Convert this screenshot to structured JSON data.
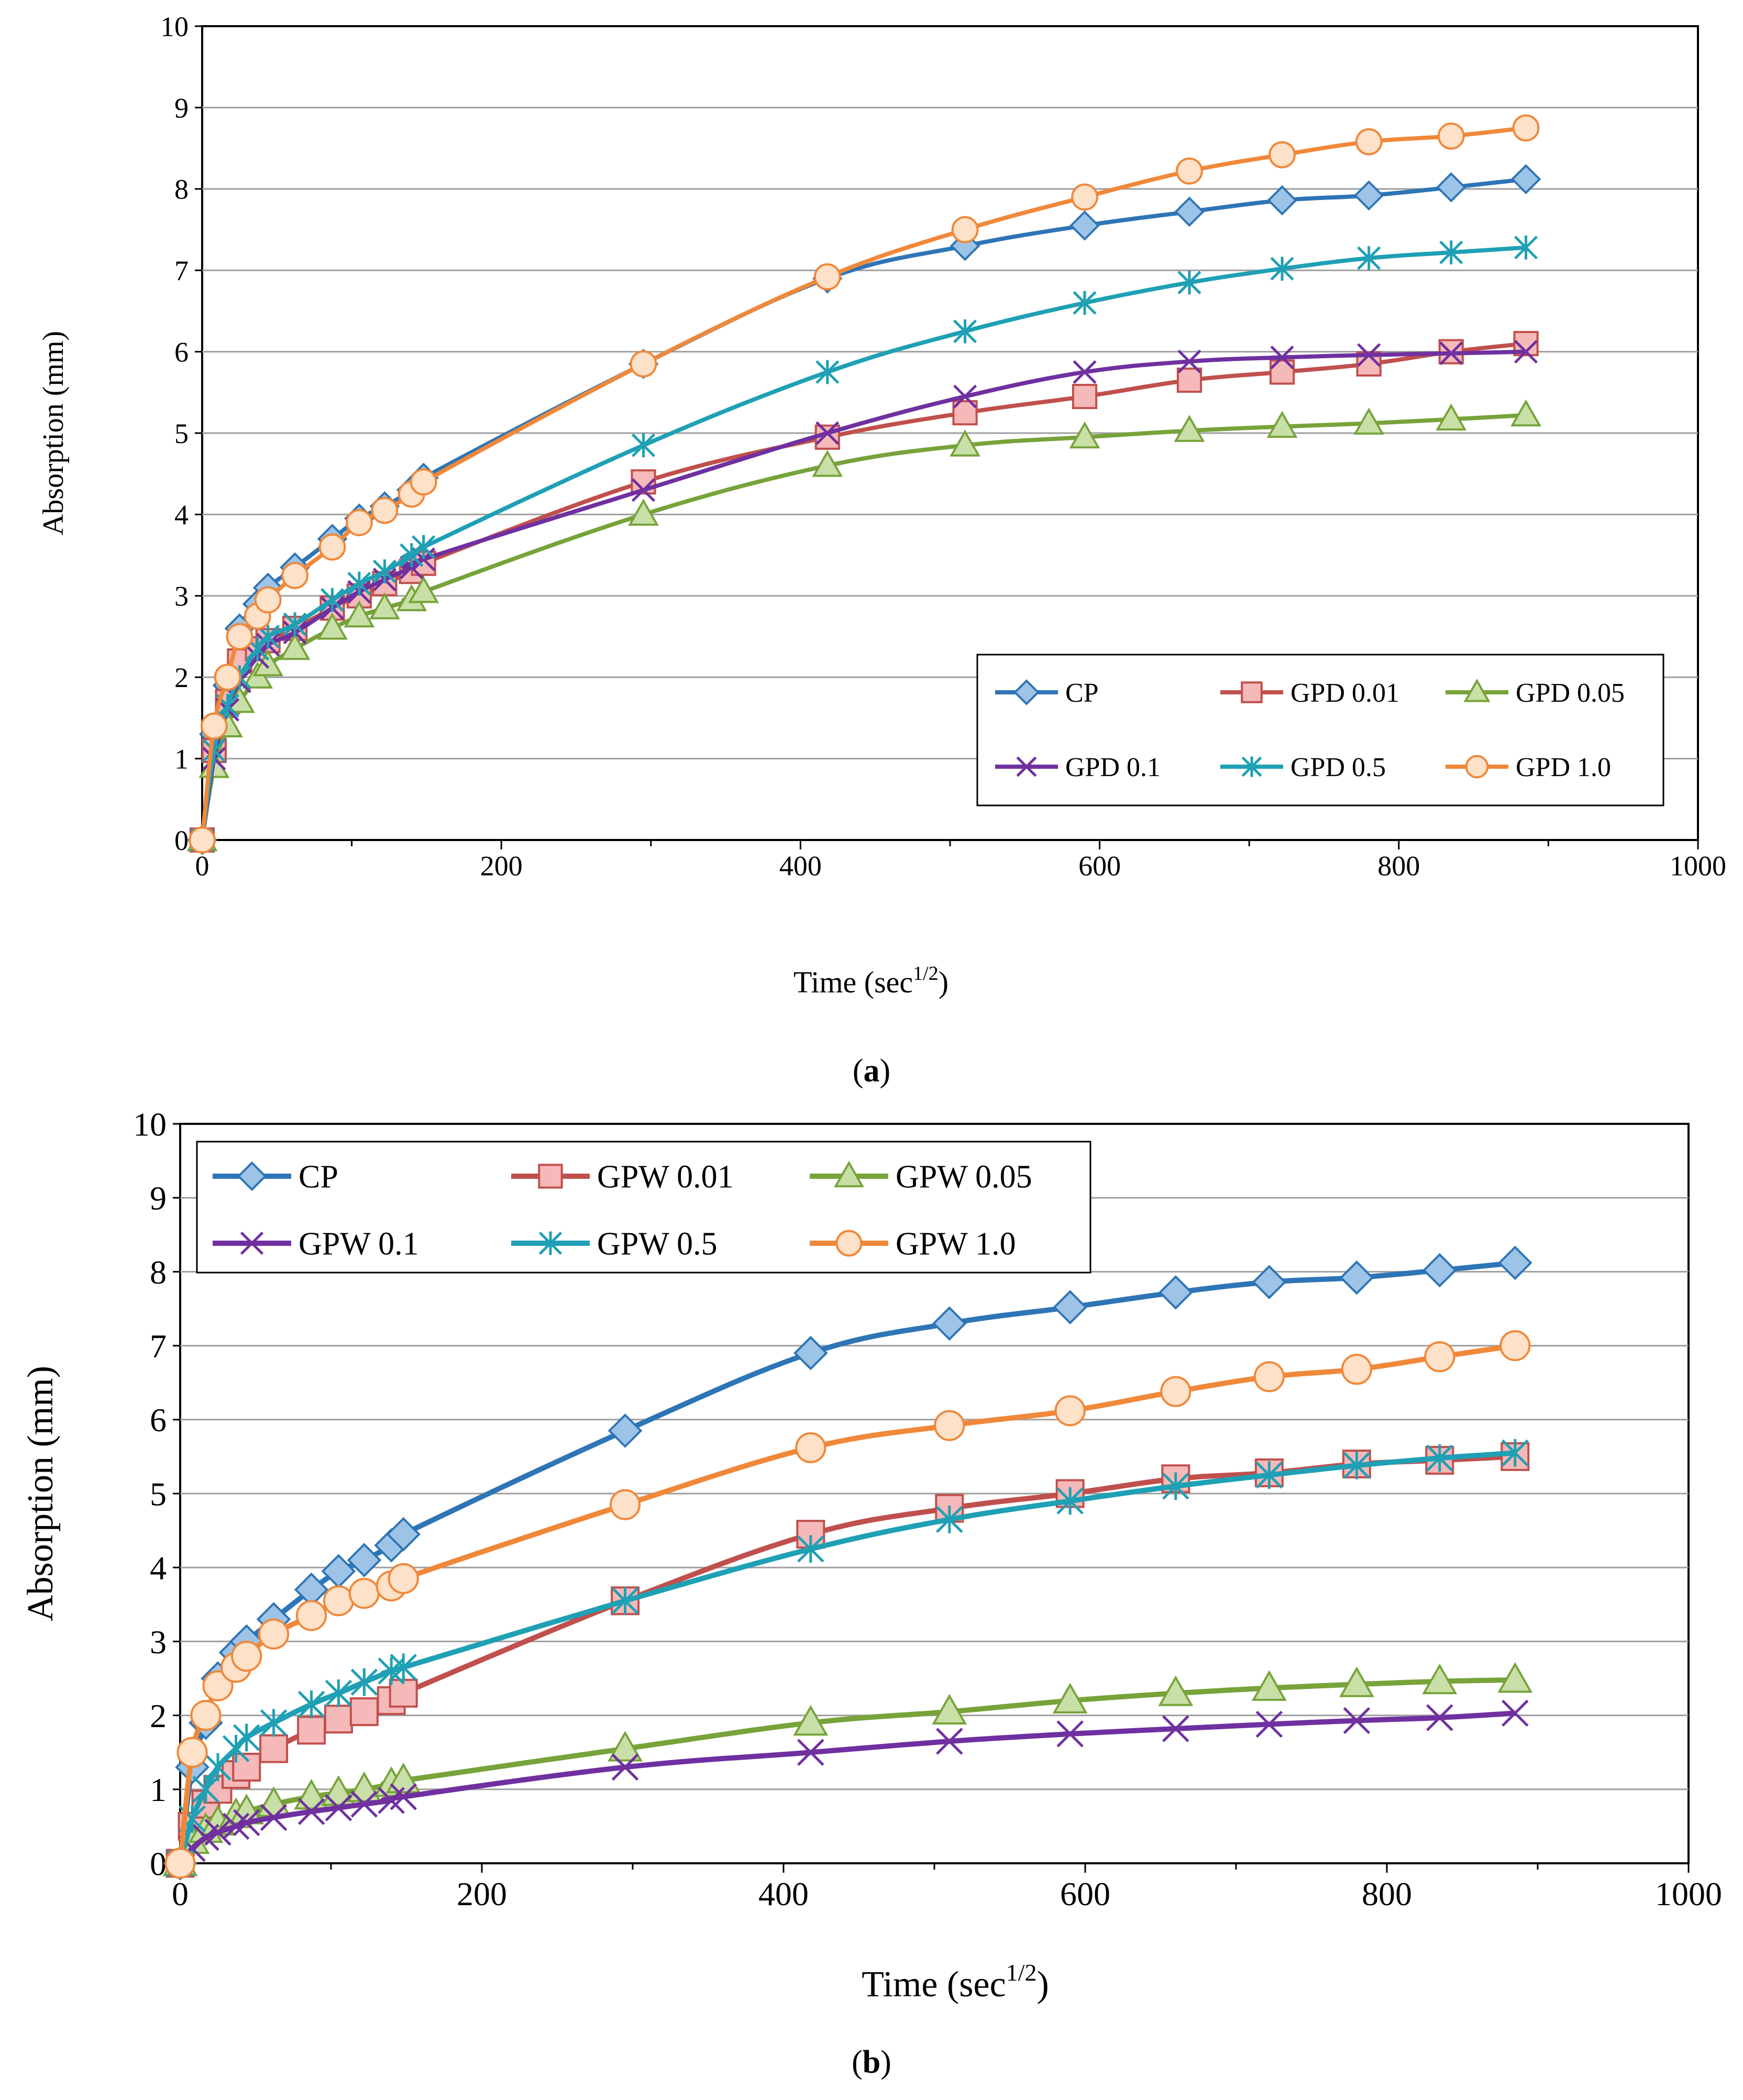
{
  "colors": {
    "CP": "#2E75B6",
    "CP_fill": "#9DC3E6",
    "s001": "#C0504D",
    "s001_fill": "#F4B9B8",
    "s005": "#77A33A",
    "s005_fill": "#C9DFA8",
    "s01": "#7030A0",
    "s05": "#1FA0B4",
    "s10": "#F0883A",
    "s10_fill": "#FDE1C8",
    "grid": "#9E9E9E",
    "axis": "#000000"
  },
  "chart_data": [
    {
      "panel": "(a)",
      "panel_letter": "a",
      "type": "line",
      "title": "",
      "xlabel": "Time (sec",
      "xlabel_sup": "1/2",
      "xlabel_close": ")",
      "ylabel": "Absorption (mm)",
      "xlim": [
        0,
        1000
      ],
      "ylim": [
        0,
        10
      ],
      "x_ticks": [
        "0",
        "200",
        "400",
        "600",
        "800",
        "1000"
      ],
      "y_ticks": [
        "0",
        "1",
        "2",
        "3",
        "4",
        "5",
        "6",
        "7",
        "8",
        "9",
        "10"
      ],
      "grid": "horizontal",
      "legend_position": "bottom-right",
      "x": [
        0,
        8,
        17,
        25,
        37,
        44,
        62,
        87,
        105,
        122,
        140,
        148,
        295,
        418,
        510,
        590,
        660,
        722,
        780,
        835,
        885
      ],
      "series": [
        {
          "name": "CP",
          "marker": "diamond",
          "color_key": "CP",
          "fill_key": "CP_fill",
          "values": [
            0,
            1.3,
            1.9,
            2.6,
            2.9,
            3.1,
            3.35,
            3.7,
            3.95,
            4.1,
            4.3,
            4.45,
            5.85,
            6.9,
            7.3,
            7.55,
            7.72,
            7.86,
            7.92,
            8.02,
            8.12
          ]
        },
        {
          "name": "GPD 0.01",
          "marker": "square",
          "color_key": "s001",
          "fill_key": "s001_fill",
          "values": [
            0,
            1.1,
            1.7,
            2.2,
            2.35,
            2.45,
            2.6,
            2.85,
            3.0,
            3.15,
            3.3,
            3.4,
            4.4,
            4.95,
            5.25,
            5.45,
            5.65,
            5.75,
            5.85,
            6.0,
            6.1
          ]
        },
        {
          "name": "GPD 0.05",
          "marker": "triangle",
          "color_key": "s005",
          "fill_key": "s005_fill",
          "values": [
            0,
            0.9,
            1.4,
            1.7,
            2.0,
            2.15,
            2.35,
            2.6,
            2.75,
            2.85,
            2.95,
            3.05,
            4.0,
            4.6,
            4.85,
            4.95,
            5.03,
            5.08,
            5.12,
            5.17,
            5.22
          ]
        },
        {
          "name": "GPD 0.1",
          "marker": "x",
          "color_key": "s01",
          "fill_key": "s01",
          "values": [
            0,
            1.0,
            1.6,
            1.95,
            2.25,
            2.4,
            2.55,
            2.85,
            3.05,
            3.2,
            3.35,
            3.45,
            4.3,
            5.0,
            5.45,
            5.75,
            5.88,
            5.93,
            5.96,
            5.98,
            6.0
          ]
        },
        {
          "name": "GPD 0.5",
          "marker": "asterisk",
          "color_key": "s05",
          "fill_key": "s05",
          "values": [
            0,
            1.1,
            1.65,
            2.0,
            2.35,
            2.5,
            2.65,
            2.95,
            3.15,
            3.3,
            3.5,
            3.6,
            4.85,
            5.75,
            6.25,
            6.6,
            6.85,
            7.02,
            7.15,
            7.22,
            7.28
          ]
        },
        {
          "name": "GPD 1.0",
          "marker": "circle",
          "color_key": "s10",
          "fill_key": "s10_fill",
          "values": [
            0,
            1.4,
            2.0,
            2.5,
            2.75,
            2.95,
            3.25,
            3.6,
            3.9,
            4.05,
            4.25,
            4.4,
            5.85,
            6.92,
            7.5,
            7.9,
            8.22,
            8.42,
            8.58,
            8.65,
            8.75
          ]
        }
      ]
    },
    {
      "panel": "(b)",
      "panel_letter": "b",
      "type": "line",
      "title": "",
      "xlabel": "Time (sec",
      "xlabel_sup": "1/2",
      "xlabel_close": ")",
      "ylabel": "Absorption (mm)",
      "xlim": [
        0,
        1000
      ],
      "ylim": [
        0,
        10
      ],
      "x_ticks": [
        "0",
        "200",
        "400",
        "600",
        "800",
        "1000"
      ],
      "y_ticks": [
        "0",
        "1",
        "2",
        "3",
        "4",
        "5",
        "6",
        "7",
        "8",
        "9",
        "10"
      ],
      "grid": "horizontal",
      "legend_position": "top-left",
      "x": [
        0,
        8,
        17,
        25,
        37,
        44,
        62,
        87,
        105,
        122,
        140,
        148,
        295,
        418,
        510,
        590,
        660,
        722,
        780,
        835,
        885
      ],
      "series": [
        {
          "name": "CP",
          "marker": "diamond",
          "color_key": "CP",
          "fill_key": "CP_fill",
          "values": [
            0,
            1.3,
            1.9,
            2.5,
            2.85,
            3.0,
            3.3,
            3.7,
            3.95,
            4.1,
            4.3,
            4.45,
            5.85,
            6.9,
            7.3,
            7.52,
            7.72,
            7.86,
            7.92,
            8.02,
            8.12
          ]
        },
        {
          "name": "GPW 0.01",
          "marker": "square",
          "color_key": "s001",
          "fill_key": "s001_fill",
          "values": [
            0,
            0.5,
            0.8,
            1.0,
            1.2,
            1.3,
            1.55,
            1.8,
            1.95,
            2.05,
            2.2,
            2.3,
            3.55,
            4.45,
            4.8,
            5.0,
            5.2,
            5.28,
            5.4,
            5.45,
            5.5
          ]
        },
        {
          "name": "GPW 0.05",
          "marker": "triangle",
          "color_key": "s005",
          "fill_key": "s005_fill",
          "values": [
            0,
            0.3,
            0.45,
            0.55,
            0.65,
            0.7,
            0.8,
            0.9,
            0.95,
            1.0,
            1.07,
            1.12,
            1.55,
            1.9,
            2.05,
            2.2,
            2.3,
            2.37,
            2.42,
            2.46,
            2.48
          ]
        },
        {
          "name": "GPW 0.1",
          "marker": "x",
          "color_key": "s01",
          "fill_key": "s01",
          "values": [
            0,
            0.2,
            0.35,
            0.42,
            0.5,
            0.55,
            0.62,
            0.7,
            0.75,
            0.8,
            0.85,
            0.9,
            1.3,
            1.5,
            1.65,
            1.75,
            1.82,
            1.88,
            1.93,
            1.97,
            2.03
          ]
        },
        {
          "name": "GPW 0.5",
          "marker": "asterisk",
          "color_key": "s05",
          "fill_key": "s05",
          "values": [
            0,
            0.6,
            1.0,
            1.3,
            1.55,
            1.7,
            1.9,
            2.15,
            2.3,
            2.45,
            2.6,
            2.65,
            3.55,
            4.25,
            4.65,
            4.9,
            5.1,
            5.25,
            5.38,
            5.48,
            5.55
          ]
        },
        {
          "name": "GPW 1.0",
          "marker": "circle",
          "color_key": "s10",
          "fill_key": "s10_fill",
          "values": [
            0,
            1.5,
            2.0,
            2.4,
            2.65,
            2.8,
            3.1,
            3.35,
            3.55,
            3.65,
            3.75,
            3.85,
            4.85,
            5.62,
            5.92,
            6.12,
            6.38,
            6.58,
            6.68,
            6.85,
            7.0
          ]
        }
      ]
    }
  ]
}
